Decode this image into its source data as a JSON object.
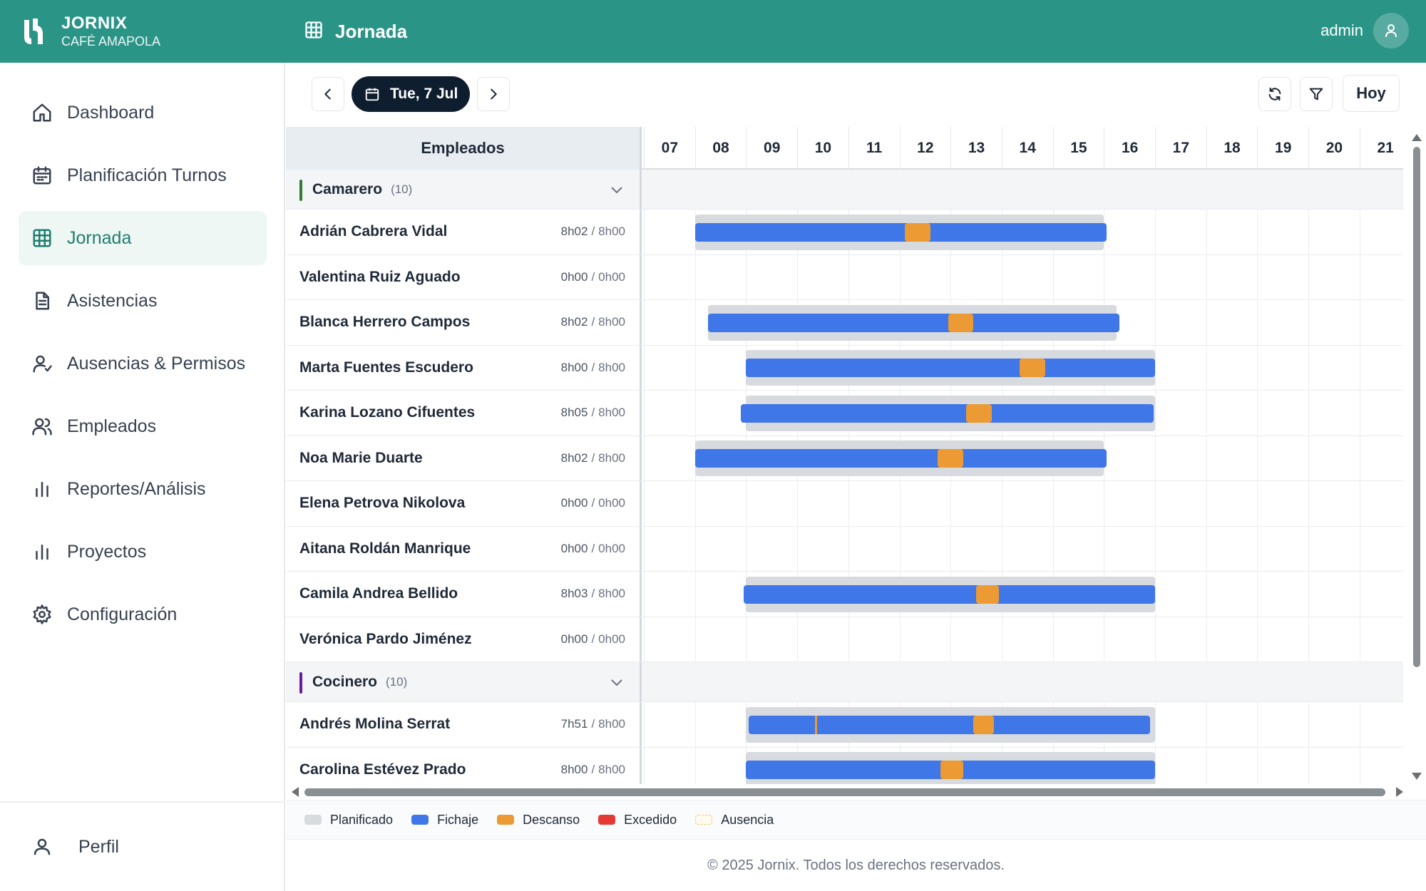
{
  "brand": {
    "name": "JORNIX",
    "subtitle": "CAFÉ AMAPOLA"
  },
  "nav": [
    {
      "label": "Dashboard",
      "icon": "home-icon",
      "active": false
    },
    {
      "label": "Planificación Turnos",
      "icon": "calendar-icon",
      "active": false
    },
    {
      "label": "Jornada",
      "icon": "grid-icon",
      "active": true
    },
    {
      "label": "Asistencias",
      "icon": "document-icon",
      "active": false
    },
    {
      "label": "Ausencias & Permisos",
      "icon": "user-check-icon",
      "active": false
    },
    {
      "label": "Empleados",
      "icon": "users-icon",
      "active": false
    },
    {
      "label": "Reportes/Análisis",
      "icon": "bar-chart-icon",
      "active": false
    },
    {
      "label": "Proyectos",
      "icon": "bar-chart-icon",
      "active": false
    },
    {
      "label": "Configuración",
      "icon": "gear-icon",
      "active": false
    }
  ],
  "profile_label": "Perfil",
  "topbar": {
    "title": "Jornada",
    "user": "admin"
  },
  "toolbar": {
    "date": "Tue, 7 Jul",
    "today": "Hoy"
  },
  "timeline": {
    "employees_header": "Empleados",
    "hours": [
      "07",
      "08",
      "09",
      "10",
      "11",
      "12",
      "13",
      "14",
      "15",
      "16",
      "17",
      "18",
      "19",
      "20",
      "21"
    ],
    "start_hour": 7,
    "rows": [
      {
        "type": "group",
        "name": "Camarero",
        "count": "(10)",
        "color": "#2e7d32"
      },
      {
        "type": "employee",
        "name": "Adrián Cabrera Vidal",
        "worked": "8h02",
        "planned": "8h00",
        "plan": [
          8.0,
          16.0
        ],
        "work": [
          8.0,
          16.05
        ],
        "breaks": [
          [
            12.1,
            12.6
          ]
        ],
        "marks": []
      },
      {
        "type": "employee",
        "name": "Valentina Ruiz Aguado",
        "worked": "0h00",
        "planned": "0h00",
        "plan": null,
        "work": null,
        "breaks": [],
        "marks": []
      },
      {
        "type": "employee",
        "name": "Blanca Herrero Campos",
        "worked": "8h02",
        "planned": "8h00",
        "plan": [
          8.25,
          16.25
        ],
        "work": [
          8.25,
          16.3
        ],
        "breaks": [
          [
            12.95,
            13.45
          ]
        ],
        "marks": []
      },
      {
        "type": "employee",
        "name": "Marta Fuentes Escudero",
        "worked": "8h00",
        "planned": "8h00",
        "plan": [
          9.0,
          17.0
        ],
        "work": [
          9.0,
          17.0
        ],
        "breaks": [
          [
            14.35,
            14.85
          ]
        ],
        "marks": []
      },
      {
        "type": "employee",
        "name": "Karina Lozano Cifuentes",
        "worked": "8h05",
        "planned": "8h00",
        "plan": [
          9.0,
          17.0
        ],
        "work": [
          8.9,
          16.97
        ],
        "breaks": [
          [
            13.3,
            13.8
          ]
        ],
        "marks": []
      },
      {
        "type": "employee",
        "name": "Noa Marie Duarte",
        "worked": "8h02",
        "planned": "8h00",
        "plan": [
          8.0,
          16.0
        ],
        "work": [
          8.0,
          16.05
        ],
        "breaks": [
          [
            12.75,
            13.25
          ]
        ],
        "marks": []
      },
      {
        "type": "employee",
        "name": "Elena Petrova Nikolova",
        "worked": "0h00",
        "planned": "0h00",
        "plan": null,
        "work": null,
        "breaks": [],
        "marks": []
      },
      {
        "type": "employee",
        "name": "Aitana Roldán Manrique",
        "worked": "0h00",
        "planned": "0h00",
        "plan": null,
        "work": null,
        "breaks": [],
        "marks": []
      },
      {
        "type": "employee",
        "name": "Camila Andrea Bellido",
        "worked": "8h03",
        "planned": "8h00",
        "plan": [
          9.0,
          17.0
        ],
        "work": [
          8.95,
          17.0
        ],
        "breaks": [
          [
            13.5,
            13.95
          ]
        ],
        "marks": []
      },
      {
        "type": "employee",
        "name": "Verónica Pardo Jiménez",
        "worked": "0h00",
        "planned": "0h00",
        "plan": null,
        "work": null,
        "breaks": [],
        "marks": []
      },
      {
        "type": "group",
        "name": "Cocinero",
        "count": "(10)",
        "color": "#6a1b9a"
      },
      {
        "type": "employee",
        "name": "Andrés Molina Serrat",
        "worked": "7h51",
        "planned": "8h00",
        "plan": [
          9.0,
          17.0
        ],
        "work": [
          9.05,
          16.9
        ],
        "breaks": [
          [
            13.45,
            13.85
          ]
        ],
        "marks": [
          10.35
        ]
      },
      {
        "type": "employee",
        "name": "Carolina Estévez Prado",
        "worked": "8h00",
        "planned": "8h00",
        "plan": [
          9.0,
          17.0
        ],
        "work": [
          9.0,
          17.0
        ],
        "breaks": [
          [
            12.8,
            13.25
          ]
        ],
        "marks": []
      }
    ]
  },
  "legend": [
    {
      "label": "Planificado",
      "color": "#d7dade"
    },
    {
      "label": "Fichaje",
      "color": "#3f76e8"
    },
    {
      "label": "Descanso",
      "color": "#ec9a34"
    },
    {
      "label": "Excedido",
      "color": "#e53935"
    },
    {
      "label": "Ausencia",
      "color": "#fffbef",
      "dashed": true
    }
  ],
  "footer": "© 2025 Jornix. Todos los derechos reservados."
}
